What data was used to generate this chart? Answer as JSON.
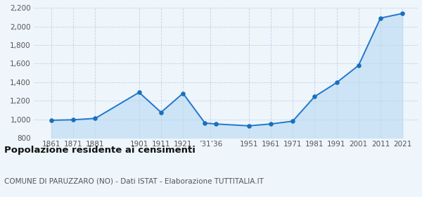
{
  "years": [
    1861,
    1871,
    1881,
    1901,
    1911,
    1921,
    1931,
    1936,
    1951,
    1961,
    1971,
    1981,
    1991,
    2001,
    2011,
    2021
  ],
  "population": [
    990,
    995,
    1010,
    1290,
    1075,
    1280,
    960,
    950,
    930,
    950,
    980,
    1245,
    1395,
    1580,
    2090,
    2140
  ],
  "x_tick_labels": [
    "1861",
    "1871",
    "1881",
    "1901",
    "1911",
    "1921",
    "’31’36",
    "1951",
    "1961",
    "1971",
    "1981",
    "1991",
    "2001",
    "2011",
    "2021"
  ],
  "x_tick_positions": [
    1861,
    1871,
    1881,
    1901,
    1911,
    1921,
    1933.5,
    1951,
    1961,
    1971,
    1981,
    1991,
    2001,
    2011,
    2021
  ],
  "ylim": [
    800,
    2200
  ],
  "yticks": [
    800,
    1000,
    1200,
    1400,
    1600,
    1800,
    2000,
    2200
  ],
  "line_color": "#2277cc",
  "fill_color": "#cce4f5",
  "marker_color": "#1a6fba",
  "grid_color": "#c0d5e8",
  "bg_color": "#eef5fb",
  "title": "Popolazione residente ai censimenti",
  "subtitle": "COMUNE DI PARUZZARO (NO) - Dati ISTAT - Elaborazione TUTTITALIA.IT",
  "title_fontsize": 9.5,
  "subtitle_fontsize": 7.5,
  "xlim_left": 1853,
  "xlim_right": 2028
}
